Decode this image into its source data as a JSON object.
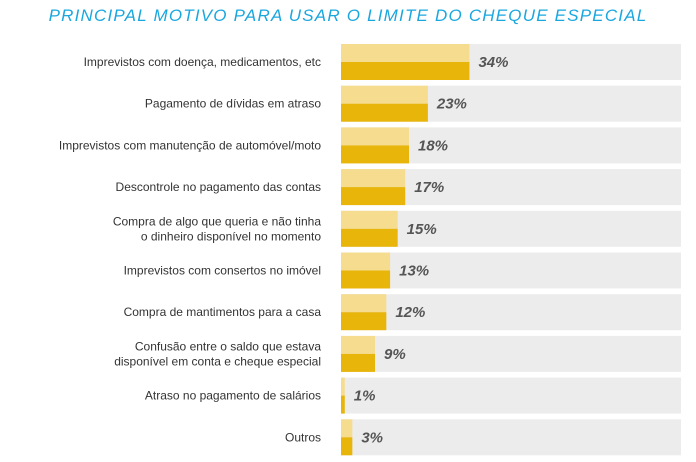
{
  "chart_data": {
    "type": "bar",
    "orientation": "horizontal",
    "title": "PRINCIPAL MOTIVO PARA USAR O LIMITE DO CHEQUE ESPECIAL",
    "categories": [
      "Imprevistos com doença, medicamentos, etc",
      "Pagamento de dívidas em atraso",
      "Imprevistos com manutenção de automóvel/moto",
      "Descontrole no pagamento das contas",
      "Compra de algo que queria e não tinha\no dinheiro disponível no momento",
      "Imprevistos com consertos no imóvel",
      "Compra de mantimentos para a casa",
      "Confusão entre o saldo que estava\ndisponível em conta e cheque especial",
      "Atraso no pagamento de salários",
      "Outros"
    ],
    "values": [
      34,
      23,
      18,
      17,
      15,
      13,
      12,
      9,
      1,
      3
    ],
    "value_labels": [
      "34%",
      "23%",
      "18%",
      "17%",
      "15%",
      "13%",
      "12%",
      "9%",
      "1%",
      "3%"
    ],
    "xlim": [
      0,
      90
    ],
    "colors": {
      "bar_light": "#f5dc8e",
      "bar_dark": "#e8b50a",
      "track": "#ececec",
      "title": "#1aa7df"
    }
  }
}
